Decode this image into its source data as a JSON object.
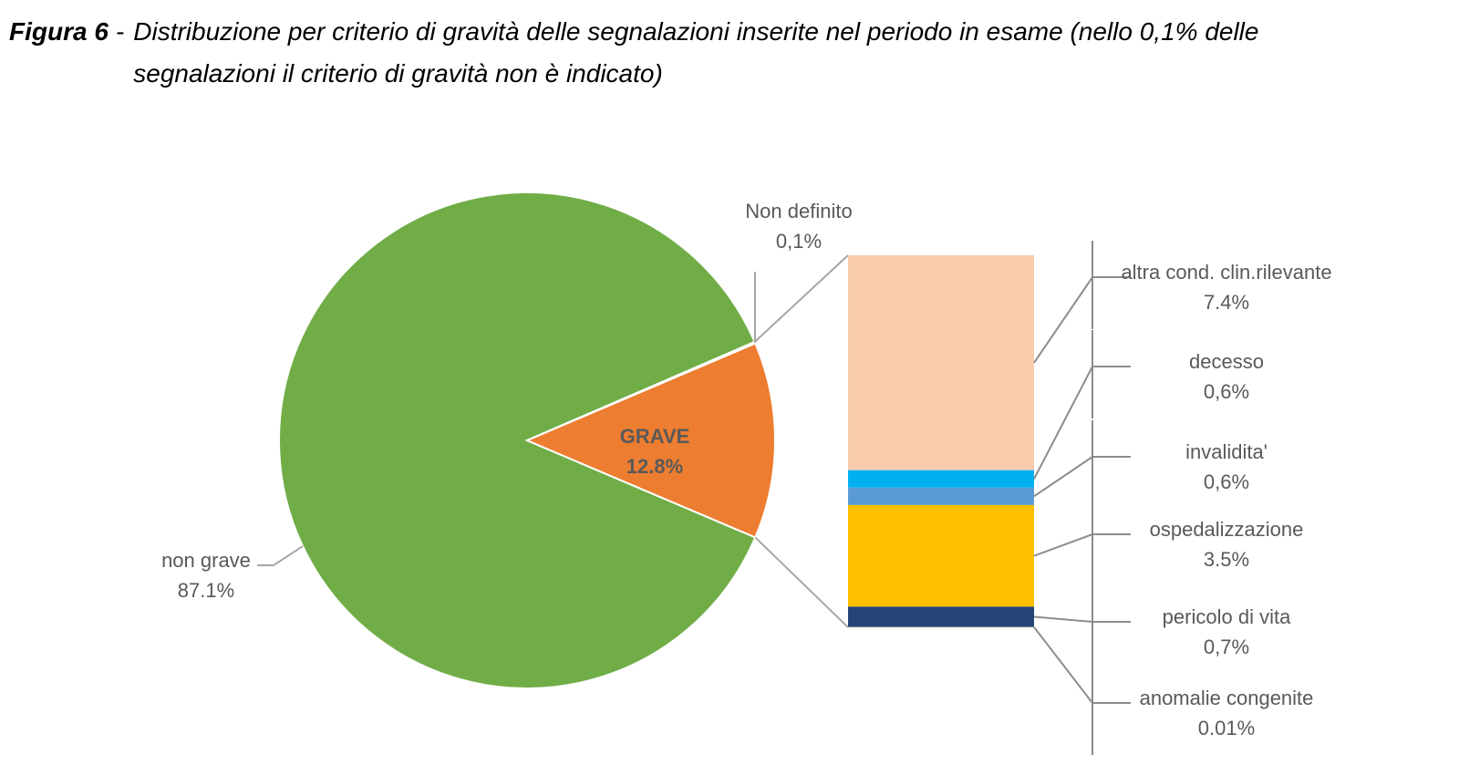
{
  "figure_label": "Figura 6",
  "figure_separator": "-",
  "title": "Distribuzione per criterio di gravità delle segnalazioni inserite nel periodo in esame (nello 0,1% delle segnalazioni il criterio di gravità non è indicato)",
  "chart_data": [
    {
      "type": "pie",
      "categories": [
        "non grave",
        "GRAVE",
        "Non definito"
      ],
      "values": [
        87.1,
        12.8,
        0.1
      ],
      "value_labels": [
        "87.1%",
        "12.8%",
        "0,1%"
      ],
      "colors": [
        "#70ad47",
        "#ed7d31",
        "#f4b183"
      ]
    },
    {
      "type": "bar",
      "categories": [
        "altra cond. clin.rilevante",
        "decesso",
        "invalidita'",
        "ospedalizzazione",
        "pericolo di vita",
        "anomalie congenite"
      ],
      "values": [
        7.4,
        0.6,
        0.6,
        3.5,
        0.7,
        0.01
      ],
      "value_labels": [
        "7.4%",
        "0,6%",
        "0,6%",
        "3.5%",
        "0,7%",
        "0.01%"
      ],
      "colors": [
        "#f8cbad",
        "#00b0f0",
        "#5b9bd5",
        "#ffc000",
        "#264478",
        "#a9d18e"
      ]
    }
  ]
}
